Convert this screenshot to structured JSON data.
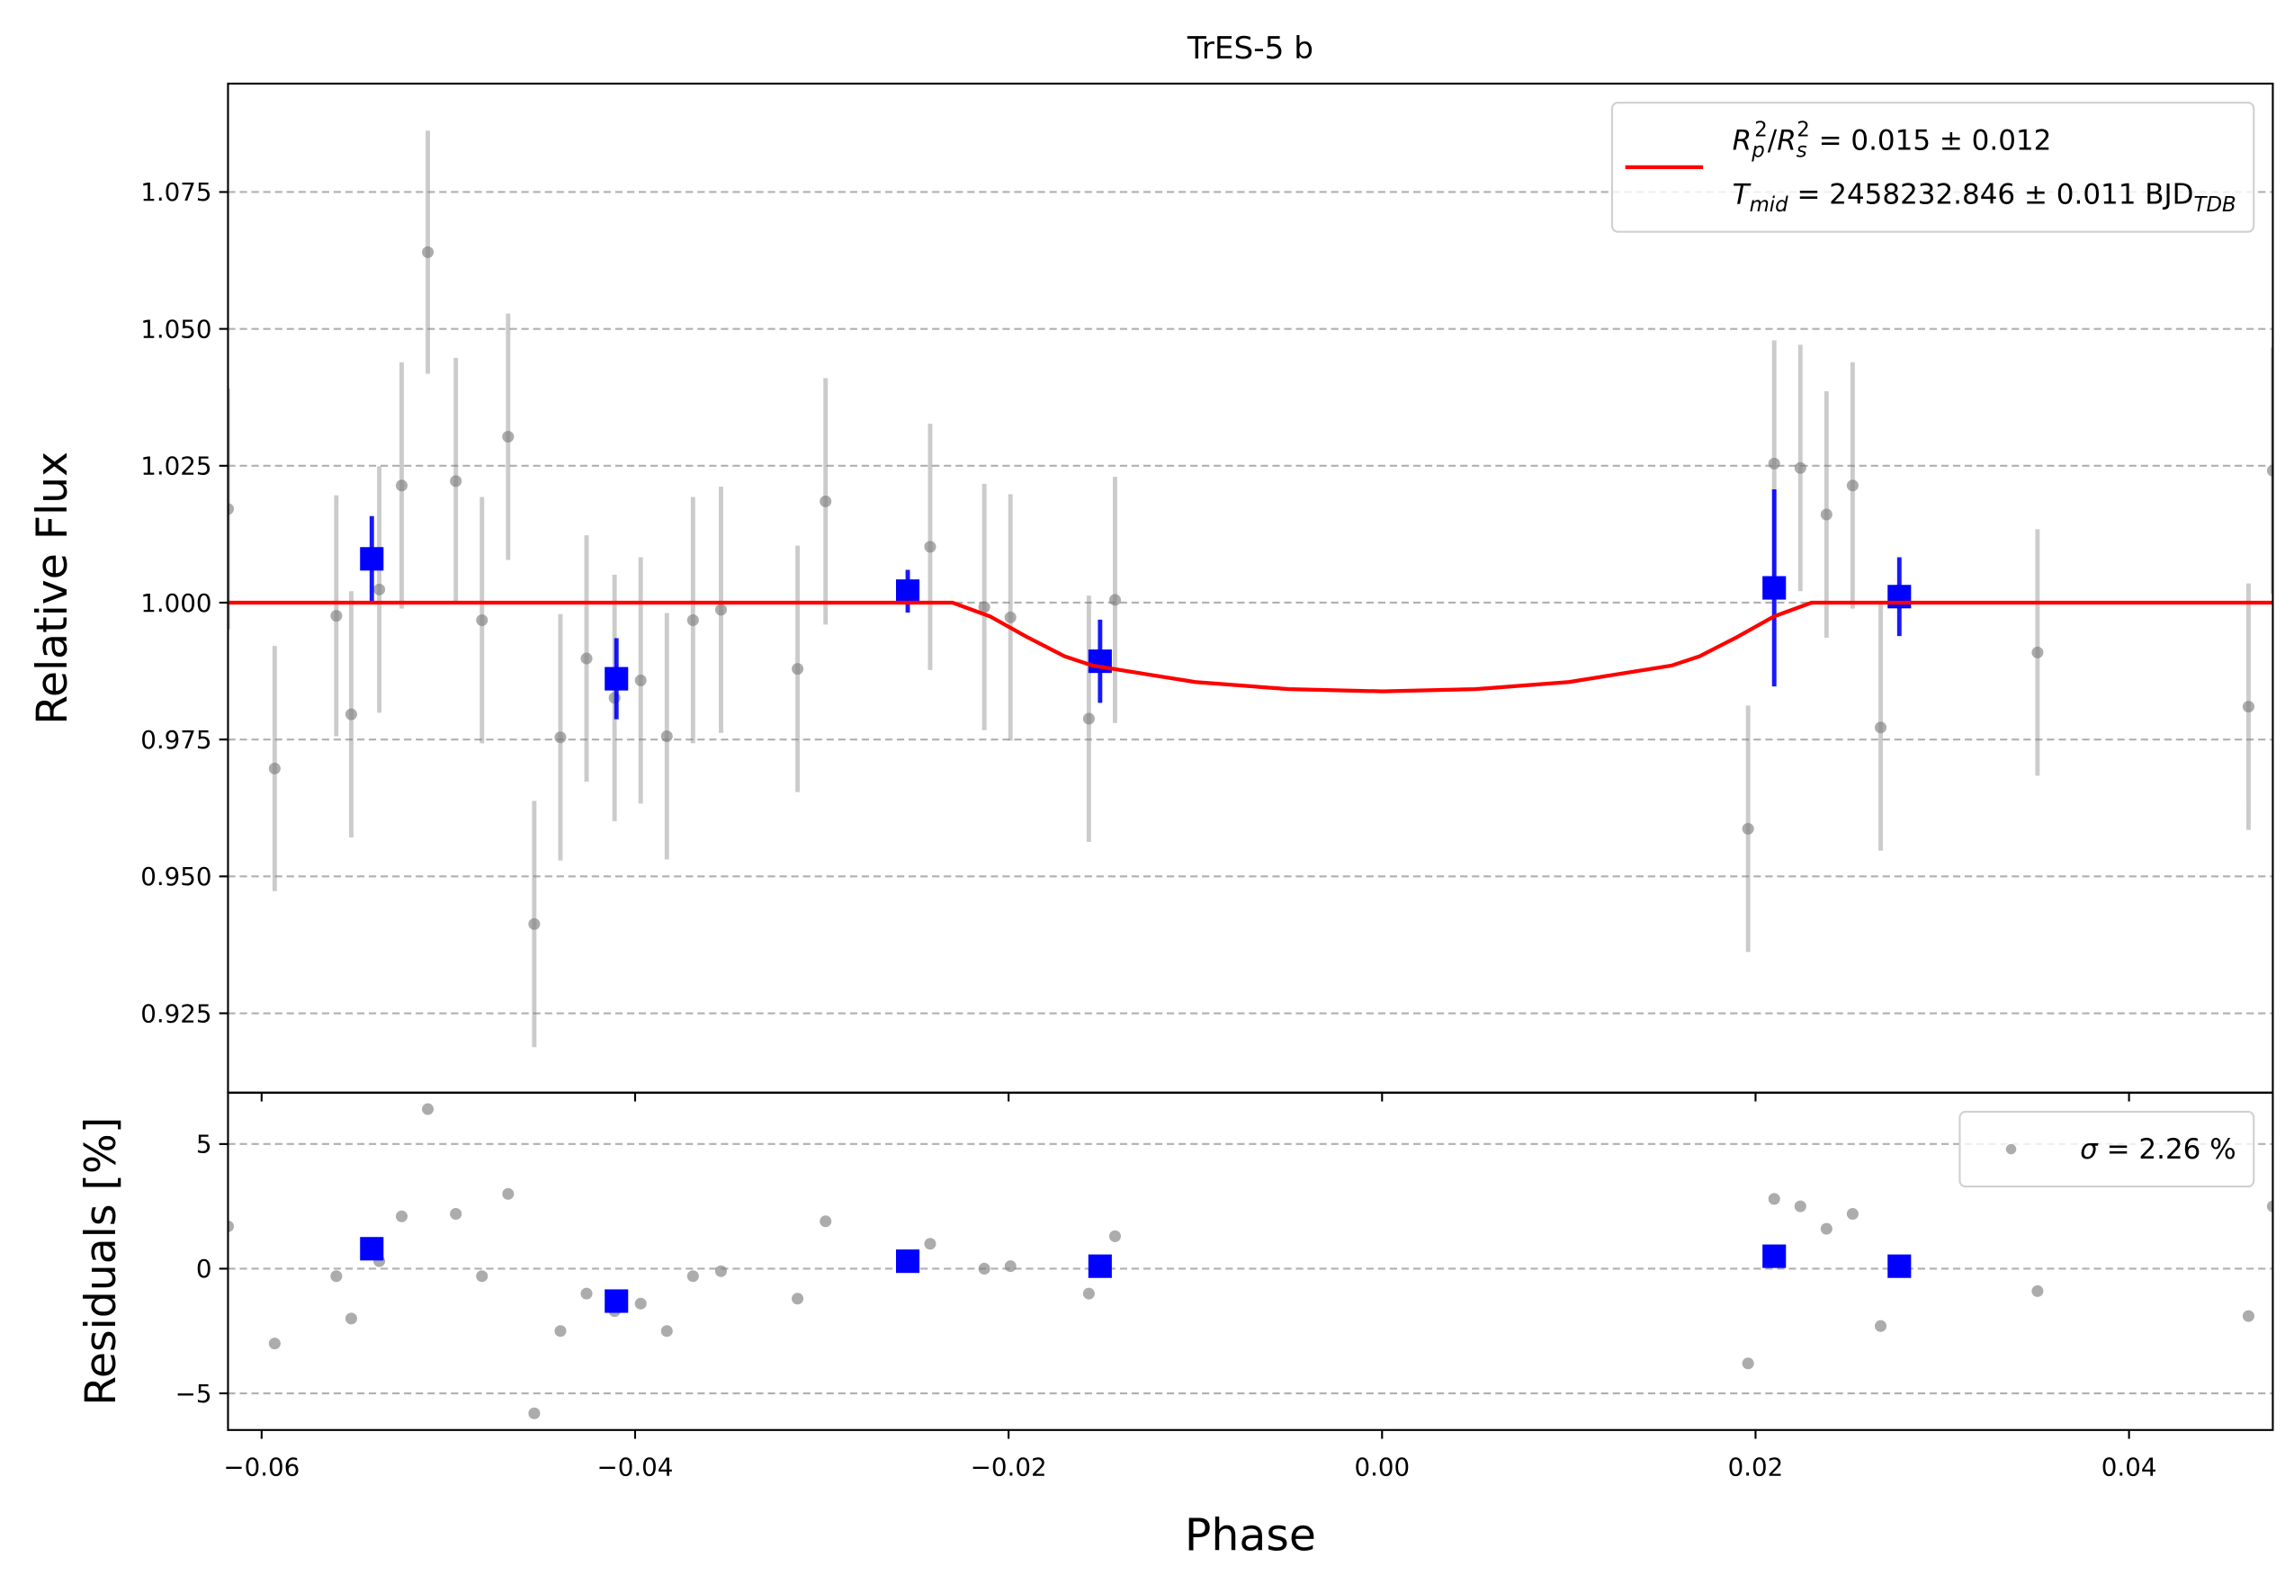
{
  "chart_data": [
    {
      "type": "scatter",
      "title": "TrES-5 b",
      "ylabel": "Relative Flux",
      "xlim": [
        -0.0618,
        0.0477
      ],
      "ylim": [
        0.9105,
        1.0948
      ],
      "yticks": [
        0.925,
        {
          "value": 0.95,
          "label": "0.950"
        },
        0.975,
        {
          "value": 1.0,
          "label": "1.000"
        },
        1.025,
        {
          "value": 1.05,
          "label": "1.050"
        },
        1.075
      ],
      "grid": "y",
      "legend": "upper right",
      "series": [
        {
          "color": "#808080",
          "alpha": 0.45,
          "marker": "circle",
          "x": [
            -0.0618,
            -0.0593,
            -0.056,
            -0.0552,
            -0.0537,
            -0.0525,
            -0.0511,
            -0.0496,
            -0.0482,
            -0.0468,
            -0.0454,
            -0.044,
            -0.0426,
            -0.0411,
            -0.0397,
            -0.0383,
            -0.0369,
            -0.0354,
            -0.0313,
            -0.0298,
            -0.0242,
            -0.0213,
            -0.0199,
            -0.0157,
            -0.0143,
            0.0196,
            0.021,
            0.0224,
            0.0238,
            0.0252,
            0.0267,
            0.0351,
            0.0464,
            0.0477
          ],
          "values": [
            1.0171,
            0.9697,
            0.9976,
            0.9796,
            1.0024,
            1.0214,
            1.064,
            1.0222,
            0.9968,
            1.0303,
            0.9413,
            0.9754,
            0.9898,
            0.9826,
            0.9858,
            0.9756,
            0.9968,
            0.9987,
            0.9879,
            1.0185,
            1.0102,
            0.9992,
            0.9973,
            0.9788,
            1.0005,
            0.9587,
            1.0254,
            1.0246,
            1.0161,
            1.0214,
            0.9772,
            0.9909,
            0.981,
            1.0241
          ],
          "errors": [
            0.022,
            0.0224,
            0.022,
            0.0225,
            0.0225,
            0.0225,
            0.0222,
            0.0225,
            0.0225,
            0.0225,
            0.0225,
            0.0225,
            0.0225,
            0.0225,
            0.0225,
            0.0225,
            0.0225,
            0.0225,
            0.0225,
            0.0225,
            0.0225,
            0.0225,
            0.0225,
            0.0225,
            0.0225,
            0.0225,
            0.0225,
            0.0225,
            0.0225,
            0.0225,
            0.0225,
            0.0225,
            0.0225,
            0.0225
          ]
        },
        {
          "color": "#0000ff",
          "alpha": 1,
          "marker": "square",
          "x": [
            -0.0541,
            -0.041,
            -0.0254,
            -0.0151,
            0.021,
            0.0277
          ],
          "values": [
            1.008,
            0.9861,
            1.0021,
            0.9893,
            1.0027,
            1.0011
          ],
          "errors": [
            0.0078,
            0.0074,
            0.0039,
            0.0076,
            0.018,
            0.0072
          ]
        },
        {
          "type": "line",
          "color": "#ff0000",
          "name": [
            [
              [
                "R",
                "i"
              ],
              [
                "p",
                "sub"
              ],
              [
                "2",
                "sup"
              ],
              [
                "/",
                ""
              ],
              [
                "R",
                "i"
              ],
              [
                "s",
                "sub"
              ],
              [
                "2",
                "sup"
              ],
              [
                " = 0.015 ± 0.012",
                ""
              ]
            ],
            [
              [
                "T",
                "i"
              ],
              [
                "mid",
                "sub"
              ],
              [
                " = 2458232.846 ± 0.011 BJD",
                ""
              ],
              [
                "TDB",
                "sub"
              ]
            ]
          ],
          "x": [
            -0.0618,
            -0.023,
            -0.021,
            -0.019,
            -0.017,
            -0.0155,
            -0.01,
            -0.005,
            0,
            0.005,
            0.01,
            0.0155,
            0.017,
            0.019,
            0.021,
            0.023,
            0.0477
          ],
          "values": [
            1,
            1,
            0.9975,
            0.9937,
            0.9902,
            0.9885,
            0.9855,
            0.9842,
            0.9838,
            0.9842,
            0.9855,
            0.9885,
            0.9902,
            0.9937,
            0.9975,
            1,
            1
          ]
        }
      ]
    },
    {
      "type": "scatter",
      "ylabel": "Residuals [%]",
      "xlabel": "Phase",
      "xlim": [
        -0.0618,
        0.0477
      ],
      "ylim": [
        -6.47,
        7.06
      ],
      "xticks": [
        {
          "value": -0.06,
          "label": "−0.06"
        },
        {
          "value": -0.04,
          "label": "−0.04"
        },
        {
          "value": -0.02,
          "label": "−0.02"
        },
        {
          "value": 0,
          "label": "0.00"
        },
        0.02,
        0.04
      ],
      "yticks": [
        {
          "value": -5,
          "label": "−5"
        },
        0,
        5
      ],
      "grid": "y",
      "legend": "upper right",
      "series": [
        {
          "color": "#808080",
          "alpha": 0.45,
          "marker": "circle",
          "name": [
            [
              [
                "σ",
                "i"
              ],
              [
                " = 2.26 %",
                ""
              ]
            ]
          ],
          "x": [
            -0.0618,
            -0.0593,
            -0.056,
            -0.0552,
            -0.0537,
            -0.0525,
            -0.0511,
            -0.0496,
            -0.0482,
            -0.0468,
            -0.0454,
            -0.044,
            -0.0426,
            -0.0411,
            -0.0397,
            -0.0383,
            -0.0369,
            -0.0354,
            -0.0313,
            -0.0298,
            -0.0242,
            -0.0213,
            -0.0199,
            -0.0157,
            -0.0143,
            0.0196,
            0.021,
            0.0224,
            0.0238,
            0.0252,
            0.0267,
            0.0351,
            0.0464,
            0.0477
          ],
          "values": [
            1.7,
            -3.0,
            -0.3,
            -2.0,
            0.3,
            2.1,
            6.4,
            2.2,
            -0.3,
            3.0,
            -5.8,
            -2.5,
            -1.0,
            -1.7,
            -1.4,
            -2.5,
            -0.3,
            -0.1,
            -1.2,
            1.9,
            1.0,
            0.0,
            0.1,
            -1.0,
            1.3,
            -3.8,
            2.8,
            2.5,
            1.6,
            2.2,
            -2.3,
            -0.9,
            -1.9,
            2.5
          ]
        },
        {
          "color": "#0000ff",
          "alpha": 1,
          "marker": "square",
          "x": [
            -0.0541,
            -0.041,
            -0.0254,
            -0.0151,
            0.021,
            0.0277
          ],
          "values": [
            0.8,
            -1.3,
            0.3,
            0.1,
            0.5,
            0.1
          ]
        }
      ]
    }
  ]
}
